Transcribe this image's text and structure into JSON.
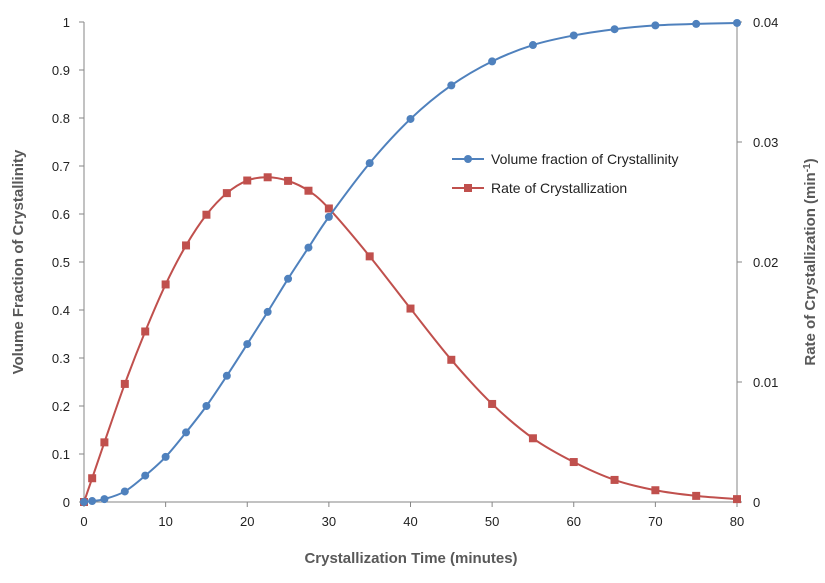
{
  "chart_data": {
    "type": "line",
    "xlabel": "Crystallization Time (minutes)",
    "ylabel_left": "Volume Fraction of Crystallinity",
    "ylabel_right_main": "Rate of Crystallization (min",
    "ylabel_right_sup": "-1",
    "ylabel_right_end": ")",
    "xlim": [
      0,
      80
    ],
    "ylim_left": [
      0,
      1
    ],
    "ylim_right": [
      0,
      0.04
    ],
    "x_ticks": [
      "0",
      "10",
      "20",
      "30",
      "40",
      "50",
      "60",
      "70",
      "80"
    ],
    "y_left_ticks": [
      "0",
      "0.1",
      "0.2",
      "0.3",
      "0.4",
      "0.5",
      "0.6",
      "0.7",
      "0.8",
      "0.9",
      "1"
    ],
    "y_right_ticks": [
      "0",
      "0.01",
      "0.02",
      "0.03",
      "0.04"
    ],
    "grid": false,
    "legend_position": "center-right",
    "series": [
      {
        "name": "Volume fraction of Crystallinity",
        "axis": "left",
        "color": "#4F81BD",
        "marker": "circle",
        "x": [
          0,
          1,
          2.5,
          5,
          7.5,
          10,
          12.5,
          15,
          17.5,
          20,
          22.5,
          25,
          27.5,
          30,
          35,
          40,
          45,
          50,
          55,
          60,
          65,
          70,
          75,
          80
        ],
        "y": [
          0,
          0.002,
          0.006,
          0.022,
          0.055,
          0.094,
          0.145,
          0.2,
          0.263,
          0.329,
          0.396,
          0.465,
          0.53,
          0.594,
          0.706,
          0.798,
          0.868,
          0.918,
          0.952,
          0.972,
          0.985,
          0.993,
          0.996,
          0.998
        ]
      },
      {
        "name": "Rate of Crystallization",
        "axis": "right",
        "color": "#C0504D",
        "marker": "square",
        "x": [
          0,
          1,
          2.5,
          5,
          7.5,
          10,
          12.5,
          15,
          17.5,
          20,
          22.5,
          25,
          27.5,
          30,
          35,
          40,
          45,
          50,
          55,
          60,
          65,
          70,
          75,
          80
        ],
        "y": [
          0,
          0.00198,
          0.00497,
          0.00984,
          0.01421,
          0.01813,
          0.02138,
          0.02394,
          0.02574,
          0.02679,
          0.02706,
          0.02676,
          0.02594,
          0.02446,
          0.02047,
          0.01612,
          0.01185,
          0.00817,
          0.00531,
          0.00333,
          0.00184,
          0.00098,
          0.00051,
          0.00024
        ]
      }
    ]
  }
}
